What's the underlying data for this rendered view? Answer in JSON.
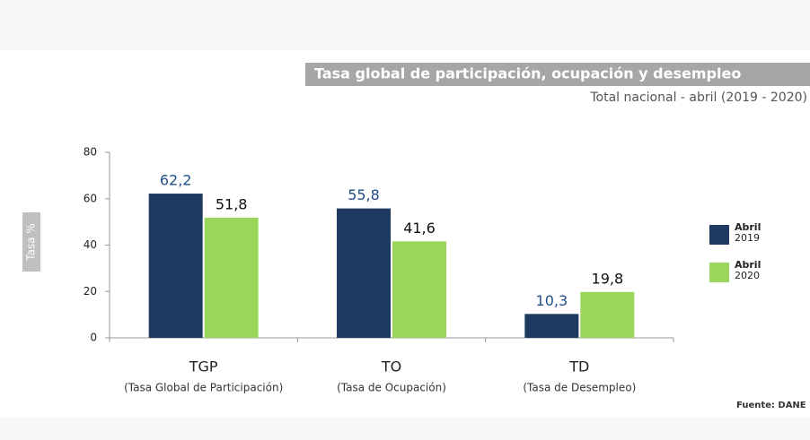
{
  "chart_data": {
    "type": "bar",
    "title": "Tasa global de participación, ocupación y desempleo",
    "subtitle": "Total nacional - abril (2019 - 2020)",
    "y_label": "Tasa %",
    "categories": [
      "TGP",
      "TO",
      "TD"
    ],
    "category_descriptions": [
      "(Tasa Global de Participación)",
      "(Tasa de Ocupación)",
      "(Tasa de Desempleo)"
    ],
    "series": [
      {
        "name": "Abril 2019",
        "color": "#1f3a60",
        "label_color": "#1f4e8c",
        "values": [
          62.2,
          55.8,
          10.3
        ],
        "value_labels": [
          "62,2",
          "55,8",
          "10,3"
        ]
      },
      {
        "name": "Abril 2020",
        "color": "#9ad65a",
        "label_color": "#111111",
        "values": [
          51.8,
          41.6,
          19.8
        ],
        "value_labels": [
          "51,8",
          "41,6",
          "19,8"
        ]
      }
    ],
    "ylim": [
      0,
      80
    ],
    "yticks": [
      0,
      20,
      40,
      60,
      80
    ],
    "grid": false,
    "legend": "right",
    "source": "Fuente: DANE"
  }
}
